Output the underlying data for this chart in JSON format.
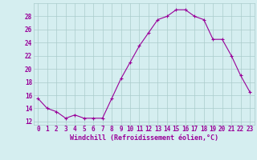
{
  "x": [
    0,
    1,
    2,
    3,
    4,
    5,
    6,
    7,
    8,
    9,
    10,
    11,
    12,
    13,
    14,
    15,
    16,
    17,
    18,
    19,
    20,
    21,
    22,
    23
  ],
  "y": [
    15.5,
    14.0,
    13.5,
    12.5,
    13.0,
    12.5,
    12.5,
    12.5,
    15.5,
    18.5,
    21.0,
    23.5,
    25.5,
    27.5,
    28.0,
    29.0,
    29.0,
    28.0,
    27.5,
    24.5,
    24.5,
    22.0,
    19.0,
    16.5
  ],
  "line_color": "#990099",
  "marker": "+",
  "marker_size": 3,
  "linewidth": 0.8,
  "xlabel": "Windchill (Refroidissement éolien,°C)",
  "xlabel_fontsize": 6,
  "xtick_labels": [
    "0",
    "1",
    "2",
    "3",
    "4",
    "5",
    "6",
    "7",
    "8",
    "9",
    "10",
    "11",
    "12",
    "13",
    "14",
    "15",
    "16",
    "17",
    "18",
    "19",
    "20",
    "21",
    "22",
    "23"
  ],
  "ytick_values": [
    12,
    14,
    16,
    18,
    20,
    22,
    24,
    26,
    28
  ],
  "ylim": [
    11.5,
    30.0
  ],
  "xlim": [
    -0.5,
    23.5
  ],
  "bg_color": "#d5eef0",
  "grid_color": "#aacccc",
  "tick_color": "#990099",
  "tick_fontsize": 5.5,
  "tick_label_color": "#990099"
}
